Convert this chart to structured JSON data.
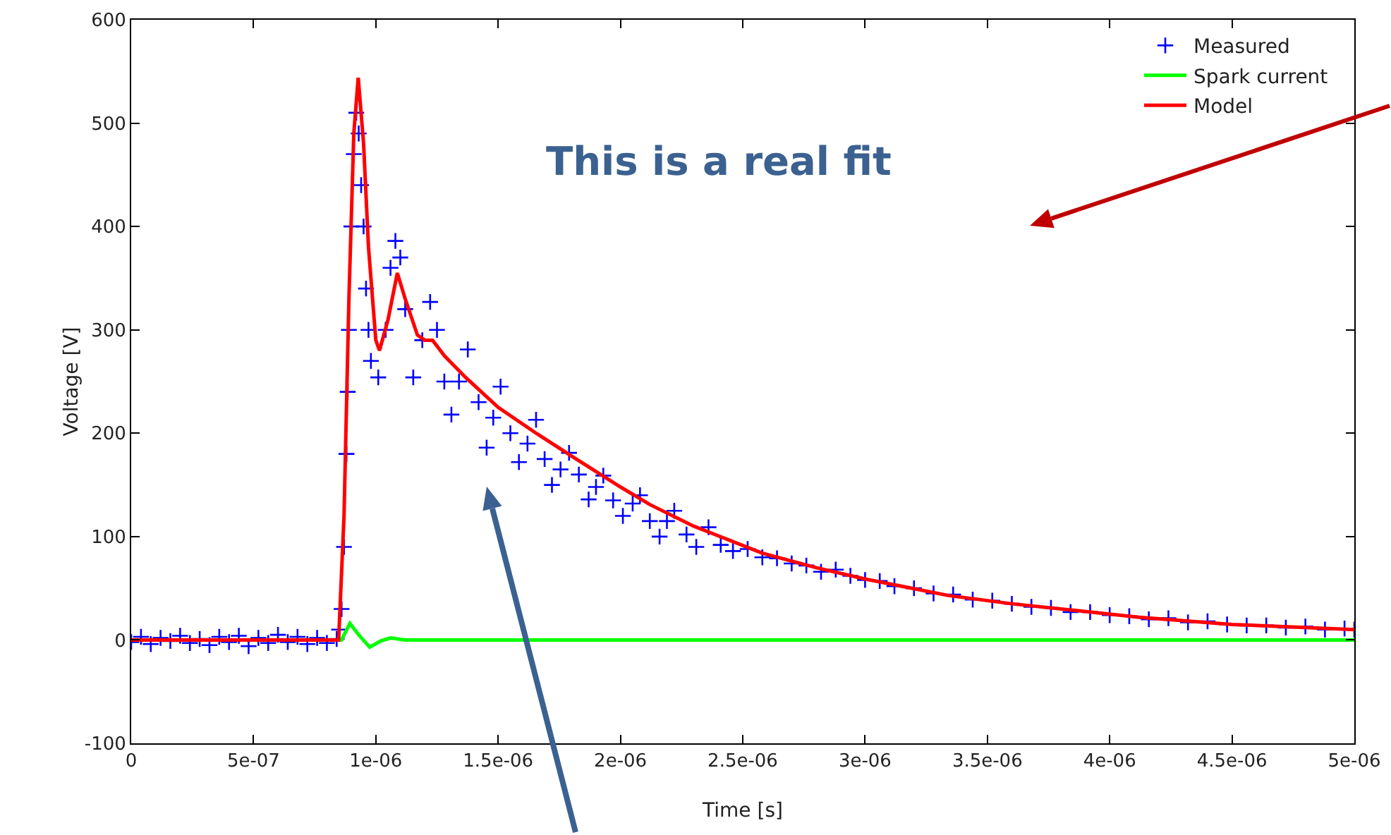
{
  "chart_data": {
    "type": "line",
    "xlabel": "Time [s]",
    "ylabel": "Voltage [V]",
    "xlim": [
      0,
      5e-06
    ],
    "ylim": [
      -100,
      600
    ],
    "xticks": [
      0,
      {
        "value": 5e-07,
        "label": "5e-07"
      },
      {
        "value": 1e-06,
        "label": "1e-06"
      },
      {
        "value": 1.5e-06,
        "label": "1.5e-06"
      },
      {
        "value": 2e-06,
        "label": "2e-06"
      },
      {
        "value": 2.5e-06,
        "label": "2.5e-06"
      },
      {
        "value": 3e-06,
        "label": "3e-06"
      },
      {
        "value": 3.5e-06,
        "label": "3.5e-06"
      },
      {
        "value": 4e-06,
        "label": "4e-06"
      },
      {
        "value": 4.5e-06,
        "label": "4.5e-06"
      },
      {
        "value": 5e-06,
        "label": "5e-06"
      }
    ],
    "yticks": [
      -100,
      0,
      100,
      200,
      300,
      400,
      500,
      600
    ],
    "grid": false,
    "legend": "top right",
    "line_style": "solid",
    "annotations": [
      "This is a real fit"
    ],
    "series": [
      {
        "name": "Measured",
        "type": "scatter",
        "marker": "cross",
        "color": "#0000ff",
        "x": [
          0,
          4e-08,
          8e-08,
          1.2e-07,
          1.6e-07,
          2e-07,
          2.4e-07,
          2.8e-07,
          3.2e-07,
          3.6e-07,
          4e-07,
          4.4e-07,
          4.8e-07,
          5.2e-07,
          5.6e-07,
          6e-07,
          6.4e-07,
          6.8e-07,
          7.2e-07,
          7.6e-07,
          8e-07,
          8.4e-07,
          8.5e-07,
          8.6e-07,
          8.7e-07,
          8.8e-07,
          8.85e-07,
          8.9e-07,
          9e-07,
          9.1e-07,
          9.2e-07,
          9.3e-07,
          9.4e-07,
          9.5e-07,
          9.6e-07,
          9.7e-07,
          9.8e-07,
          1.01e-06,
          1.04e-06,
          1.06e-06,
          1.08e-06,
          1.1e-06,
          1.12e-06,
          1.153e-06,
          1.19e-06,
          1.222e-06,
          1.25e-06,
          1.28e-06,
          1.309e-06,
          1.34e-06,
          1.376e-06,
          1.42e-06,
          1.453e-06,
          1.48e-06,
          1.51e-06,
          1.55e-06,
          1.585e-06,
          1.62e-06,
          1.655e-06,
          1.69e-06,
          1.72e-06,
          1.755e-06,
          1.79e-06,
          1.83e-06,
          1.87e-06,
          1.9e-06,
          1.93e-06,
          1.97e-06,
          2.01e-06,
          2.05e-06,
          2.08e-06,
          2.12e-06,
          2.16e-06,
          2.19e-06,
          2.22e-06,
          2.27e-06,
          2.31e-06,
          2.36e-06,
          2.41e-06,
          2.46e-06,
          2.52e-06,
          2.58e-06,
          2.64e-06,
          2.7e-06,
          2.76e-06,
          2.82e-06,
          2.88e-06,
          2.94e-06,
          3e-06,
          3.06e-06,
          3.12e-06,
          3.2e-06,
          3.28e-06,
          3.36e-06,
          3.44e-06,
          3.52e-06,
          3.6e-06,
          3.68e-06,
          3.76e-06,
          3.84e-06,
          3.92e-06,
          4e-06,
          4.08e-06,
          4.16e-06,
          4.24e-06,
          4.32e-06,
          4.4e-06,
          4.48e-06,
          4.56e-06,
          4.64e-06,
          4.72e-06,
          4.8e-06,
          4.88e-06,
          4.96e-06,
          5e-06
        ],
        "values": [
          -2,
          3,
          -4,
          2,
          -1,
          4,
          -3,
          1,
          -5,
          3,
          -2,
          4,
          -6,
          2,
          -3,
          5,
          -2,
          3,
          -4,
          2,
          -3,
          1,
          10,
          30,
          90,
          180,
          240,
          300,
          400,
          470,
          510,
          490,
          440,
          400,
          340,
          300,
          270,
          254,
          300,
          360,
          386,
          370,
          320,
          254,
          290,
          327,
          300,
          250,
          218,
          250,
          281,
          230,
          186,
          215,
          245,
          200,
          172,
          190,
          213,
          175,
          150,
          165,
          181,
          160,
          136,
          148,
          159,
          135,
          120,
          132,
          140,
          115,
          100,
          115,
          125,
          102,
          90,
          109,
          92,
          86,
          88,
          80,
          79,
          74,
          72,
          66,
          68,
          62,
          58,
          57,
          52,
          50,
          45,
          44,
          39,
          38,
          35,
          32,
          31,
          27,
          27,
          24,
          23,
          20,
          21,
          17,
          18,
          15,
          14,
          14,
          12,
          13,
          10,
          11,
          10
        ]
      },
      {
        "name": "Spark current",
        "color": "#00ff00",
        "x": [
          0,
          8.6e-07,
          8.94e-07,
          9.3e-07,
          9.75e-07,
          1.02e-06,
          1.06e-06,
          1.12e-06,
          5e-06
        ],
        "values": [
          0,
          0,
          16,
          5,
          -7,
          -1,
          2,
          0,
          0
        ]
      },
      {
        "name": "Model",
        "color": "#ff0000",
        "x": [
          0,
          8.48e-07,
          8.7e-07,
          8.9e-07,
          9.1e-07,
          9.28e-07,
          9.5e-07,
          9.7e-07,
          1e-06,
          1.015e-06,
          1.05e-06,
          1.088e-06,
          1.12e-06,
          1.17e-06,
          1.2e-06,
          1.232e-06,
          1.28e-06,
          1.367e-06,
          1.5e-06,
          1.655e-06,
          1.8e-06,
          2e-06,
          2.12e-06,
          2.3e-06,
          2.58e-06,
          2.8e-06,
          3e-06,
          3.34e-06,
          3.6e-06,
          4.12e-06,
          4.5e-06,
          5e-06
        ],
        "values": [
          0,
          0,
          120,
          330,
          490,
          544,
          480,
          380,
          290,
          280,
          310,
          355,
          330,
          295,
          290,
          290,
          275,
          254,
          225,
          200,
          178,
          148,
          131,
          110,
          84,
          70,
          59,
          43,
          35,
          22,
          15,
          10
        ]
      }
    ]
  }
}
